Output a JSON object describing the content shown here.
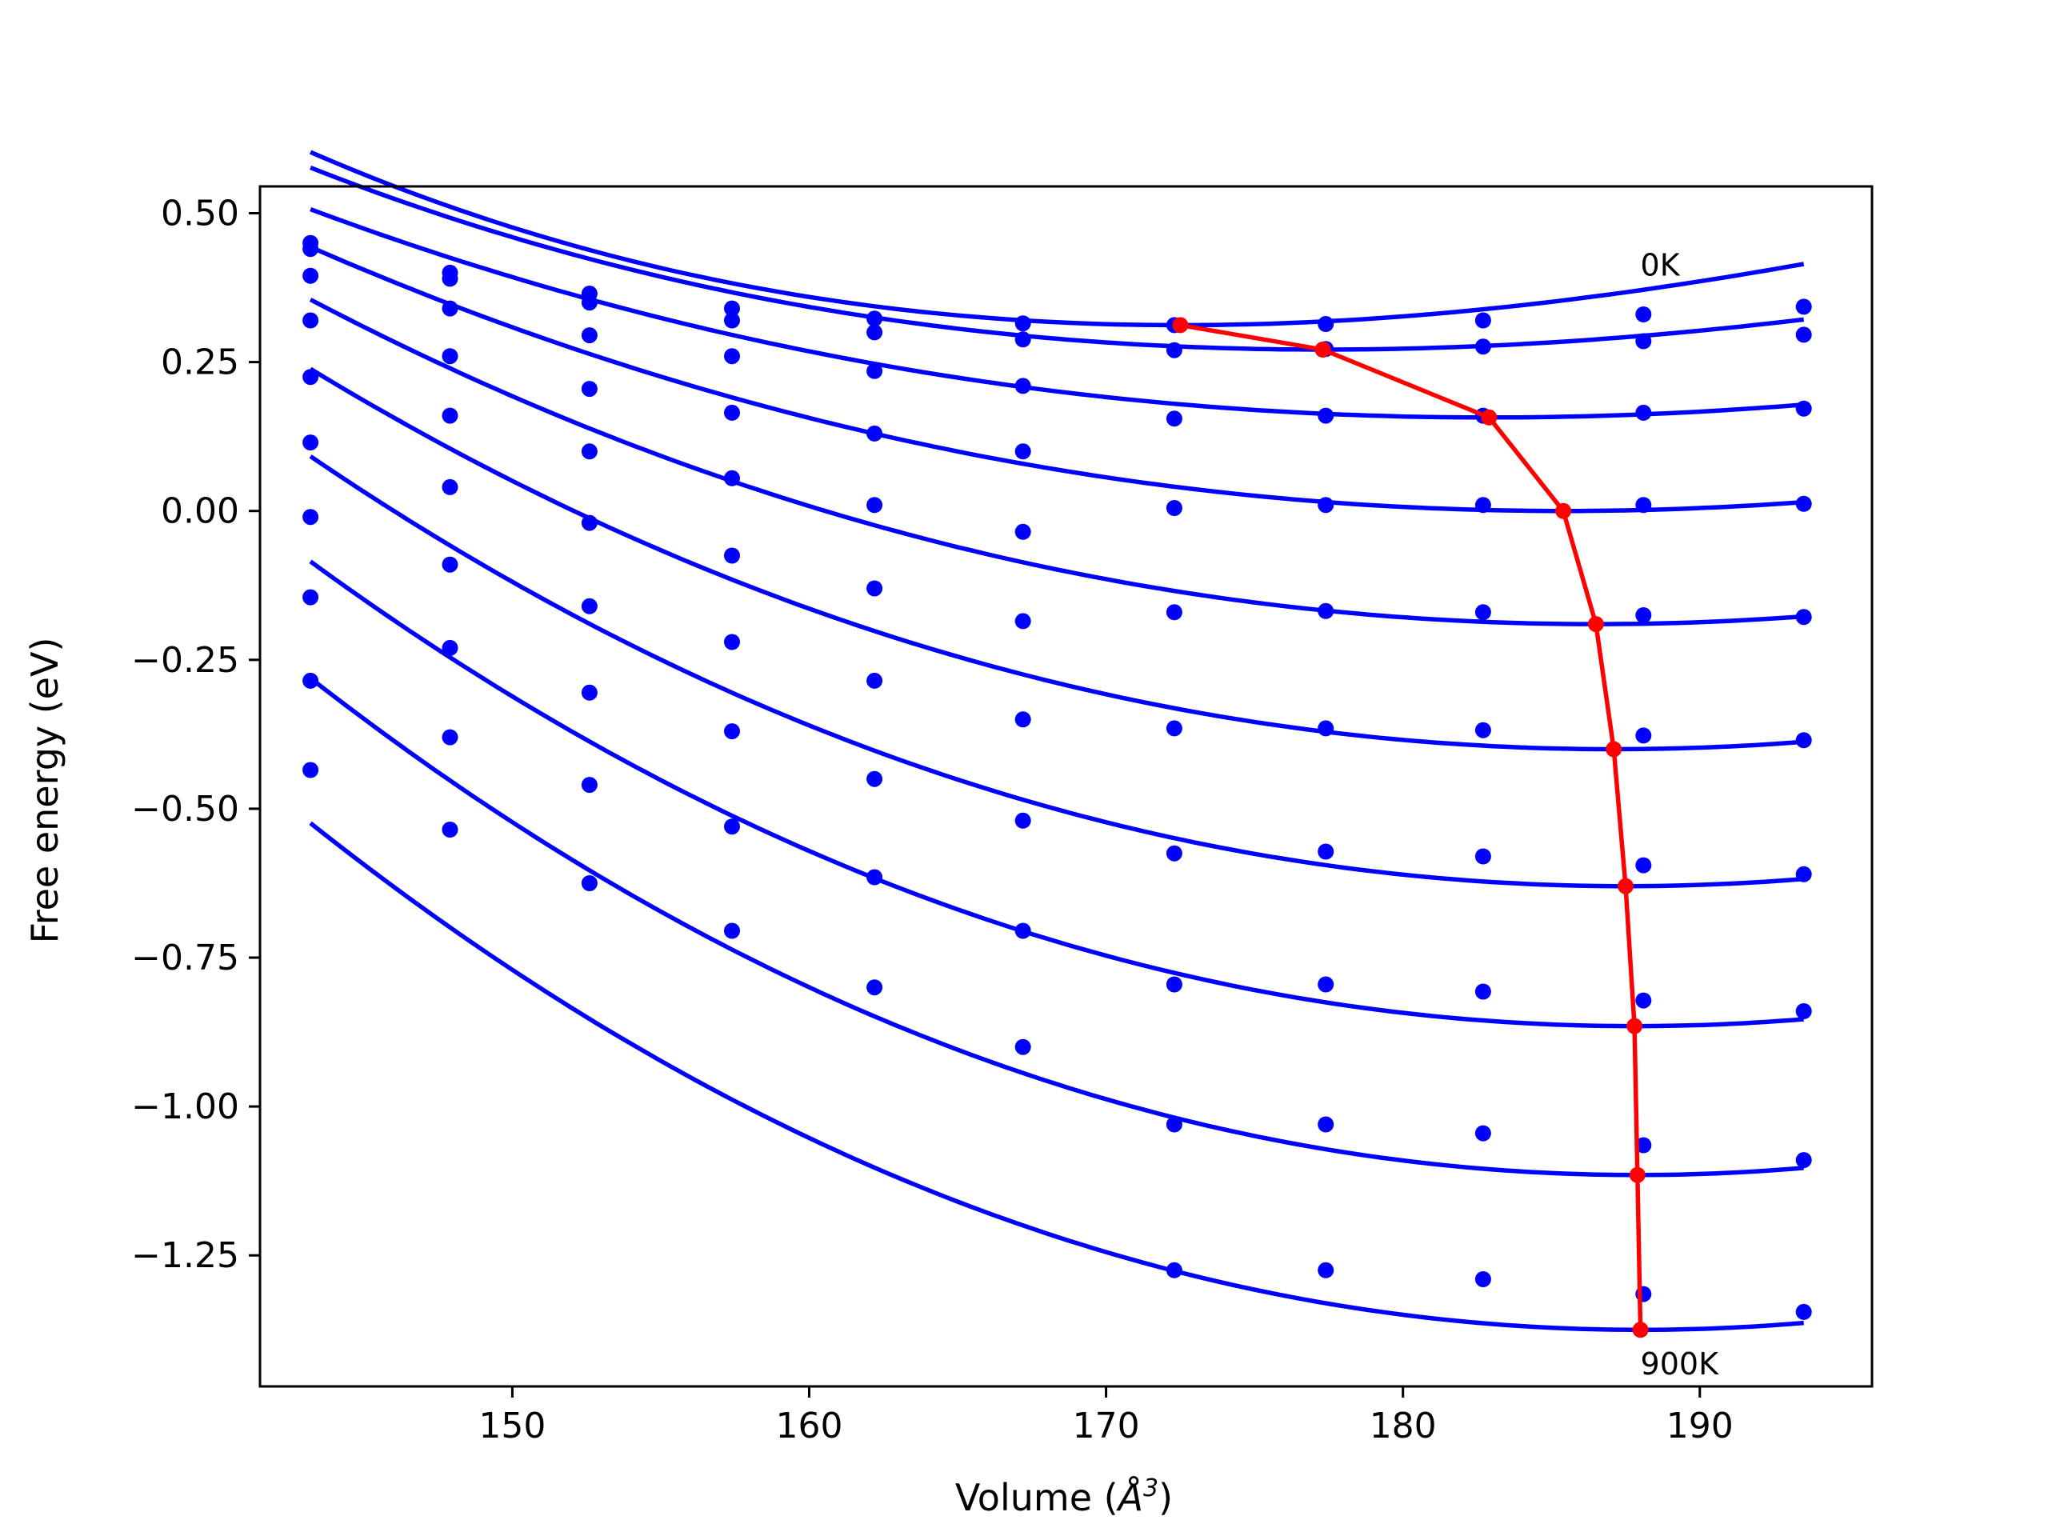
{
  "chart_data": {
    "type": "scatter",
    "xlabel_prefix": "Volume (",
    "xlabel_symbol": "Å",
    "xlabel_exponent": "3",
    "xlabel_suffix": ")",
    "ylabel": "Free energy (eV)",
    "xlim": [
      141.5,
      195.8
    ],
    "ylim": [
      -1.47,
      0.545
    ],
    "xticks": [
      150,
      160,
      170,
      180,
      190
    ],
    "xtick_labels": [
      "150",
      "160",
      "170",
      "180",
      "190"
    ],
    "yticks": [
      0.5,
      0.25,
      0.0,
      -0.25,
      -0.5,
      -0.75,
      -1.0,
      -1.25
    ],
    "ytick_labels": [
      "0.50",
      "0.25",
      "0.00",
      "−0.25",
      "−0.50",
      "−0.75",
      "−1.00",
      "−1.25"
    ],
    "grid": false,
    "colors": {
      "points": "#0000ff",
      "fits": "#0000ff",
      "minima": "#ff0000"
    },
    "volumes": [
      143.2,
      147.9,
      152.6,
      157.4,
      162.2,
      167.2,
      172.3,
      177.4,
      182.7,
      188.1,
      193.5
    ],
    "point_series": [
      {
        "values": [
          0.45,
          0.4,
          0.365,
          0.34,
          0.323,
          0.315,
          0.312,
          0.314,
          0.32,
          0.33,
          0.343
        ]
      },
      {
        "values": [
          0.44,
          0.39,
          0.35,
          0.32,
          0.3,
          0.288,
          0.27,
          0.272,
          0.276,
          0.285,
          0.296
        ]
      },
      {
        "values": [
          0.395,
          0.34,
          0.295,
          0.26,
          0.235,
          0.21,
          0.155,
          0.16,
          0.16,
          0.165,
          0.172
        ]
      },
      {
        "values": [
          0.32,
          0.26,
          0.205,
          0.165,
          0.13,
          0.1,
          0.005,
          0.01,
          0.01,
          0.01,
          0.012
        ]
      },
      {
        "values": [
          0.225,
          0.16,
          0.1,
          0.055,
          0.01,
          -0.035,
          -0.17,
          -0.168,
          -0.17,
          -0.175,
          -0.178
        ]
      },
      {
        "values": [
          0.115,
          0.04,
          -0.02,
          -0.075,
          -0.13,
          -0.185,
          -0.365,
          -0.365,
          -0.368,
          -0.377,
          -0.385
        ]
      },
      {
        "values": [
          -0.01,
          -0.09,
          -0.16,
          -0.22,
          -0.285,
          -0.35,
          -0.575,
          -0.572,
          -0.58,
          -0.595,
          -0.61
        ]
      },
      {
        "values": [
          -0.145,
          -0.23,
          -0.305,
          -0.37,
          -0.45,
          -0.52,
          -0.795,
          -0.795,
          -0.807,
          -0.822,
          -0.84
        ]
      },
      {
        "values": [
          -0.285,
          -0.38,
          -0.46,
          -0.53,
          -0.615,
          -0.705,
          -1.03,
          -1.03,
          -1.045,
          -1.065,
          -1.09
        ]
      },
      {
        "values": [
          -0.435,
          -0.535,
          -0.625,
          -0.705,
          -0.8,
          -0.9,
          -1.275,
          -1.275,
          -1.29,
          -1.315,
          -1.345
        ]
      }
    ],
    "fit_curves": [
      {
        "v0": 172.5,
        "e0": 0.312,
        "a": 0.000277,
        "c": 2.1e-06
      },
      {
        "v0": 177.3,
        "e0": 0.271,
        "a": 0.000215,
        "c": 1.4e-06
      },
      {
        "v0": 182.9,
        "e0": 0.157,
        "a": 0.000198,
        "c": 6e-07
      },
      {
        "v0": 185.4,
        "e0": 0.0,
        "a": 0.000232,
        "c": 4e-07
      },
      {
        "v0": 186.5,
        "e0": -0.19,
        "a": 0.000269,
        "c": 5e-07
      },
      {
        "v0": 187.1,
        "e0": -0.4,
        "a": 0.000305,
        "c": 6e-07
      },
      {
        "v0": 187.5,
        "e0": -0.63,
        "a": 0.000339,
        "c": 6.5e-07
      },
      {
        "v0": 187.8,
        "e0": -0.865,
        "a": 0.000361,
        "c": 7e-07
      },
      {
        "v0": 187.9,
        "e0": -1.115,
        "a": 0.000384,
        "c": 7.5e-07
      },
      {
        "v0": 188.0,
        "e0": -1.375,
        "a": 0.000389,
        "c": 7.8e-07
      }
    ],
    "minima_line": {
      "x": [
        172.5,
        177.3,
        182.9,
        185.4,
        186.5,
        187.1,
        187.5,
        187.8,
        187.9,
        188.0
      ],
      "y": [
        0.312,
        0.271,
        0.157,
        0.0,
        -0.19,
        -0.4,
        -0.63,
        -0.865,
        -1.115,
        -1.375
      ]
    },
    "annotations": [
      {
        "text": "0K",
        "x": 188.0,
        "y": 0.395
      },
      {
        "text": "900K",
        "x": 188.0,
        "y": -1.45
      }
    ]
  }
}
